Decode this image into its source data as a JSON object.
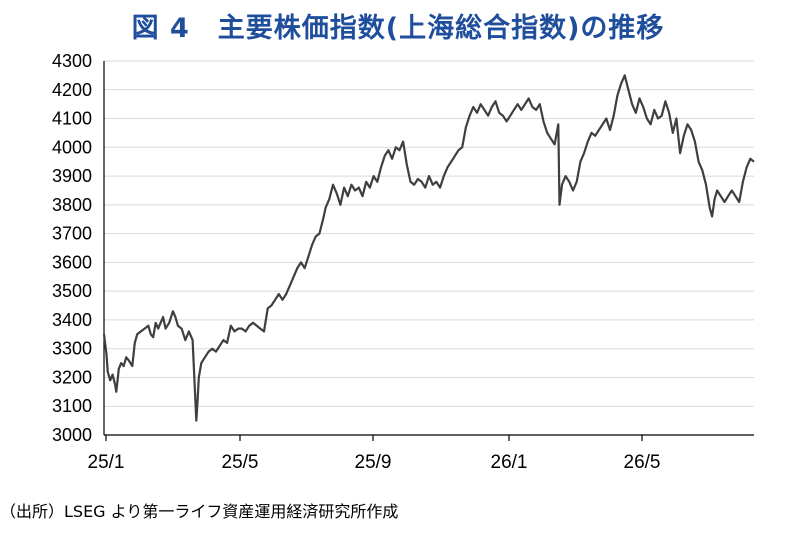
{
  "title": "図 4　主要株価指数(上海総合指数)の推移",
  "source": "（出所）LSEG より第一ライフ資産運用経済研究所作成",
  "colors": {
    "title": "#1f4e9c",
    "line": "#3f3f3f",
    "grid": "#d9d9d9",
    "axis": "#000000"
  },
  "chart_data": {
    "type": "line",
    "title": "主要株価指数(上海総合指数)の推移",
    "xlabel": "",
    "ylabel": "",
    "ylim": [
      3000,
      4300
    ],
    "yticks": [
      3000,
      3100,
      3200,
      3300,
      3400,
      3500,
      3600,
      3700,
      3800,
      3900,
      4000,
      4100,
      4200,
      4300
    ],
    "xticks": [
      "25/1",
      "25/5",
      "25/9",
      "26/1",
      "26/5"
    ],
    "grid": "horizontal",
    "series": [
      {
        "values": [
          [
            0,
            3350
          ],
          [
            0.2,
            3280
          ],
          [
            0.3,
            3220
          ],
          [
            0.5,
            3190
          ],
          [
            0.7,
            3210
          ],
          [
            0.9,
            3175
          ],
          [
            1.0,
            3150
          ],
          [
            1.2,
            3230
          ],
          [
            1.4,
            3250
          ],
          [
            1.6,
            3240
          ],
          [
            1.8,
            3270
          ],
          [
            2.0,
            3260
          ],
          [
            2.3,
            3240
          ],
          [
            2.5,
            3320
          ],
          [
            2.7,
            3350
          ],
          [
            3.0,
            3360
          ],
          [
            3.3,
            3370
          ],
          [
            3.6,
            3380
          ],
          [
            3.8,
            3350
          ],
          [
            4.0,
            3340
          ],
          [
            4.2,
            3390
          ],
          [
            4.4,
            3370
          ],
          [
            4.6,
            3390
          ],
          [
            4.8,
            3410
          ],
          [
            5.0,
            3370
          ],
          [
            5.3,
            3390
          ],
          [
            5.6,
            3430
          ],
          [
            5.8,
            3410
          ],
          [
            6.0,
            3380
          ],
          [
            6.3,
            3370
          ],
          [
            6.6,
            3330
          ],
          [
            6.9,
            3360
          ],
          [
            7.2,
            3330
          ],
          [
            7.5,
            3050
          ],
          [
            7.6,
            3120
          ],
          [
            7.7,
            3200
          ],
          [
            7.9,
            3250
          ],
          [
            8.2,
            3270
          ],
          [
            8.5,
            3290
          ],
          [
            8.8,
            3300
          ],
          [
            9.1,
            3290
          ],
          [
            9.4,
            3310
          ],
          [
            9.7,
            3330
          ],
          [
            10.0,
            3320
          ],
          [
            10.3,
            3380
          ],
          [
            10.6,
            3360
          ],
          [
            10.9,
            3370
          ],
          [
            11.2,
            3370
          ],
          [
            11.5,
            3360
          ],
          [
            11.8,
            3380
          ],
          [
            12.1,
            3390
          ],
          [
            12.4,
            3380
          ],
          [
            12.7,
            3370
          ],
          [
            13.0,
            3360
          ],
          [
            13.3,
            3440
          ],
          [
            13.6,
            3450
          ],
          [
            13.9,
            3470
          ],
          [
            14.2,
            3490
          ],
          [
            14.5,
            3470
          ],
          [
            14.8,
            3490
          ],
          [
            15.1,
            3520
          ],
          [
            15.4,
            3550
          ],
          [
            15.7,
            3580
          ],
          [
            16.0,
            3600
          ],
          [
            16.3,
            3580
          ],
          [
            16.6,
            3620
          ],
          [
            16.9,
            3660
          ],
          [
            17.2,
            3690
          ],
          [
            17.5,
            3700
          ],
          [
            17.8,
            3750
          ],
          [
            18.0,
            3790
          ],
          [
            18.3,
            3820
          ],
          [
            18.6,
            3870
          ],
          [
            18.9,
            3840
          ],
          [
            19.2,
            3800
          ],
          [
            19.5,
            3860
          ],
          [
            19.8,
            3830
          ],
          [
            20.1,
            3870
          ],
          [
            20.4,
            3850
          ],
          [
            20.7,
            3860
          ],
          [
            21.0,
            3830
          ],
          [
            21.3,
            3880
          ],
          [
            21.6,
            3860
          ],
          [
            21.9,
            3900
          ],
          [
            22.2,
            3880
          ],
          [
            22.5,
            3930
          ],
          [
            22.8,
            3970
          ],
          [
            23.1,
            3990
          ],
          [
            23.4,
            3960
          ],
          [
            23.7,
            4000
          ],
          [
            24.0,
            3990
          ],
          [
            24.3,
            4020
          ],
          [
            24.6,
            3940
          ],
          [
            24.9,
            3880
          ],
          [
            25.2,
            3870
          ],
          [
            25.5,
            3890
          ],
          [
            25.8,
            3880
          ],
          [
            26.1,
            3860
          ],
          [
            26.4,
            3900
          ],
          [
            26.7,
            3870
          ],
          [
            27.0,
            3880
          ],
          [
            27.3,
            3860
          ],
          [
            27.6,
            3900
          ],
          [
            27.9,
            3930
          ],
          [
            28.2,
            3950
          ],
          [
            28.5,
            3970
          ],
          [
            28.8,
            3990
          ],
          [
            29.1,
            4000
          ],
          [
            29.4,
            4070
          ],
          [
            29.7,
            4110
          ],
          [
            30.0,
            4140
          ],
          [
            30.3,
            4120
          ],
          [
            30.6,
            4150
          ],
          [
            30.9,
            4130
          ],
          [
            31.2,
            4110
          ],
          [
            31.5,
            4140
          ],
          [
            31.8,
            4160
          ],
          [
            32.1,
            4120
          ],
          [
            32.4,
            4110
          ],
          [
            32.7,
            4090
          ],
          [
            33.0,
            4110
          ],
          [
            33.3,
            4130
          ],
          [
            33.6,
            4150
          ],
          [
            33.9,
            4130
          ],
          [
            34.2,
            4150
          ],
          [
            34.5,
            4170
          ],
          [
            34.8,
            4140
          ],
          [
            35.1,
            4130
          ],
          [
            35.4,
            4150
          ],
          [
            35.7,
            4090
          ],
          [
            36.0,
            4050
          ],
          [
            36.3,
            4030
          ],
          [
            36.6,
            4010
          ],
          [
            36.9,
            4080
          ],
          [
            37.0,
            3800
          ],
          [
            37.2,
            3870
          ],
          [
            37.5,
            3900
          ],
          [
            37.8,
            3880
          ],
          [
            38.1,
            3850
          ],
          [
            38.4,
            3880
          ],
          [
            38.7,
            3950
          ],
          [
            39.0,
            3980
          ],
          [
            39.3,
            4020
          ],
          [
            39.6,
            4050
          ],
          [
            39.9,
            4040
          ],
          [
            40.2,
            4060
          ],
          [
            40.5,
            4080
          ],
          [
            40.8,
            4100
          ],
          [
            41.1,
            4060
          ],
          [
            41.4,
            4110
          ],
          [
            41.7,
            4180
          ],
          [
            42.0,
            4220
          ],
          [
            42.3,
            4250
          ],
          [
            42.6,
            4200
          ],
          [
            42.9,
            4150
          ],
          [
            43.2,
            4120
          ],
          [
            43.5,
            4170
          ],
          [
            43.8,
            4140
          ],
          [
            44.1,
            4100
          ],
          [
            44.4,
            4080
          ],
          [
            44.7,
            4130
          ],
          [
            45.0,
            4100
          ],
          [
            45.3,
            4110
          ],
          [
            45.6,
            4160
          ],
          [
            45.9,
            4120
          ],
          [
            46.2,
            4050
          ],
          [
            46.5,
            4100
          ],
          [
            46.8,
            3980
          ],
          [
            47.1,
            4040
          ],
          [
            47.4,
            4080
          ],
          [
            47.7,
            4060
          ],
          [
            48.0,
            4020
          ],
          [
            48.3,
            3950
          ],
          [
            48.6,
            3920
          ],
          [
            48.9,
            3870
          ],
          [
            49.2,
            3790
          ],
          [
            49.4,
            3760
          ],
          [
            49.6,
            3820
          ],
          [
            49.8,
            3850
          ],
          [
            50.1,
            3830
          ],
          [
            50.4,
            3810
          ],
          [
            50.7,
            3830
          ],
          [
            51.0,
            3850
          ],
          [
            51.3,
            3830
          ],
          [
            51.6,
            3810
          ],
          [
            51.9,
            3880
          ],
          [
            52.2,
            3930
          ],
          [
            52.5,
            3960
          ],
          [
            52.8,
            3950
          ]
        ]
      }
    ]
  }
}
